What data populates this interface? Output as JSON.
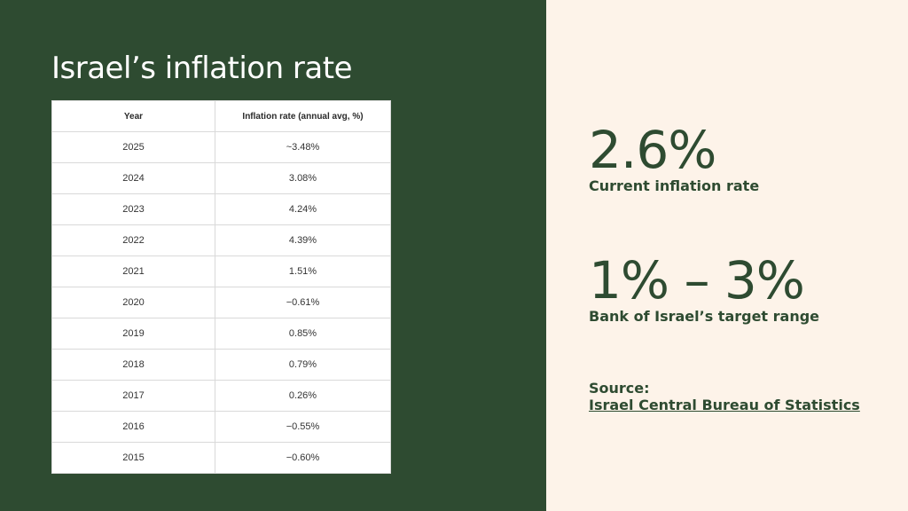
{
  "title": "Israel’s inflation rate",
  "table": {
    "headers": [
      "Year",
      "Inflation rate (annual avg, %)"
    ],
    "rows": [
      {
        "year": "2025",
        "rate": "~3.48%"
      },
      {
        "year": "2024",
        "rate": "3.08%"
      },
      {
        "year": "2023",
        "rate": "4.24%"
      },
      {
        "year": "2022",
        "rate": "4.39%"
      },
      {
        "year": "2021",
        "rate": "1.51%"
      },
      {
        "year": "2020",
        "rate": "−0.61%"
      },
      {
        "year": "2019",
        "rate": "0.85%"
      },
      {
        "year": "2018",
        "rate": "0.79%"
      },
      {
        "year": "2017",
        "rate": "0.26%"
      },
      {
        "year": "2016",
        "rate": "−0.55%"
      },
      {
        "year": "2015",
        "rate": "−0.60%"
      }
    ]
  },
  "stats": [
    {
      "value": "2.6%",
      "label": "Current inflation rate"
    },
    {
      "value": "1% – 3%",
      "label": "Bank of Israel’s target range"
    }
  ],
  "source": {
    "label": "Source:",
    "link_text": "Israel Central Bureau of Statistics"
  },
  "colors": {
    "dark_green": "#2e4b31",
    "cream": "#fdf3e9"
  }
}
